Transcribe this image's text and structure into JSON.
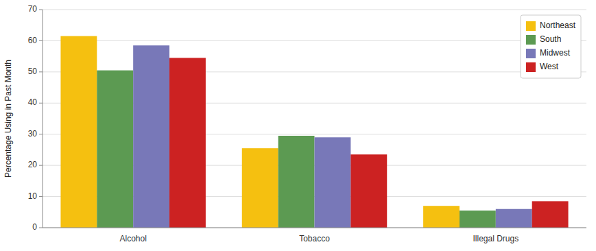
{
  "chart_data": {
    "type": "bar",
    "categories": [
      "Alcohol",
      "Tobacco",
      "Illegal Drugs"
    ],
    "series": [
      {
        "name": "Northeast",
        "color": "#F5C010",
        "values": [
          61.5,
          25.5,
          7.0
        ]
      },
      {
        "name": "South",
        "color": "#5C9A52",
        "values": [
          50.5,
          29.5,
          5.5
        ]
      },
      {
        "name": "Midwest",
        "color": "#7878B8",
        "values": [
          58.5,
          29.0,
          6.0
        ]
      },
      {
        "name": "West",
        "color": "#CC2222",
        "values": [
          54.5,
          23.5,
          8.5
        ]
      }
    ],
    "ylabel": "Percentage Using in Past Month",
    "ylim": [
      0,
      70
    ],
    "yticks": [
      0,
      10,
      20,
      30,
      40,
      50,
      60,
      70
    ],
    "grid": true,
    "legend": "upper right"
  }
}
